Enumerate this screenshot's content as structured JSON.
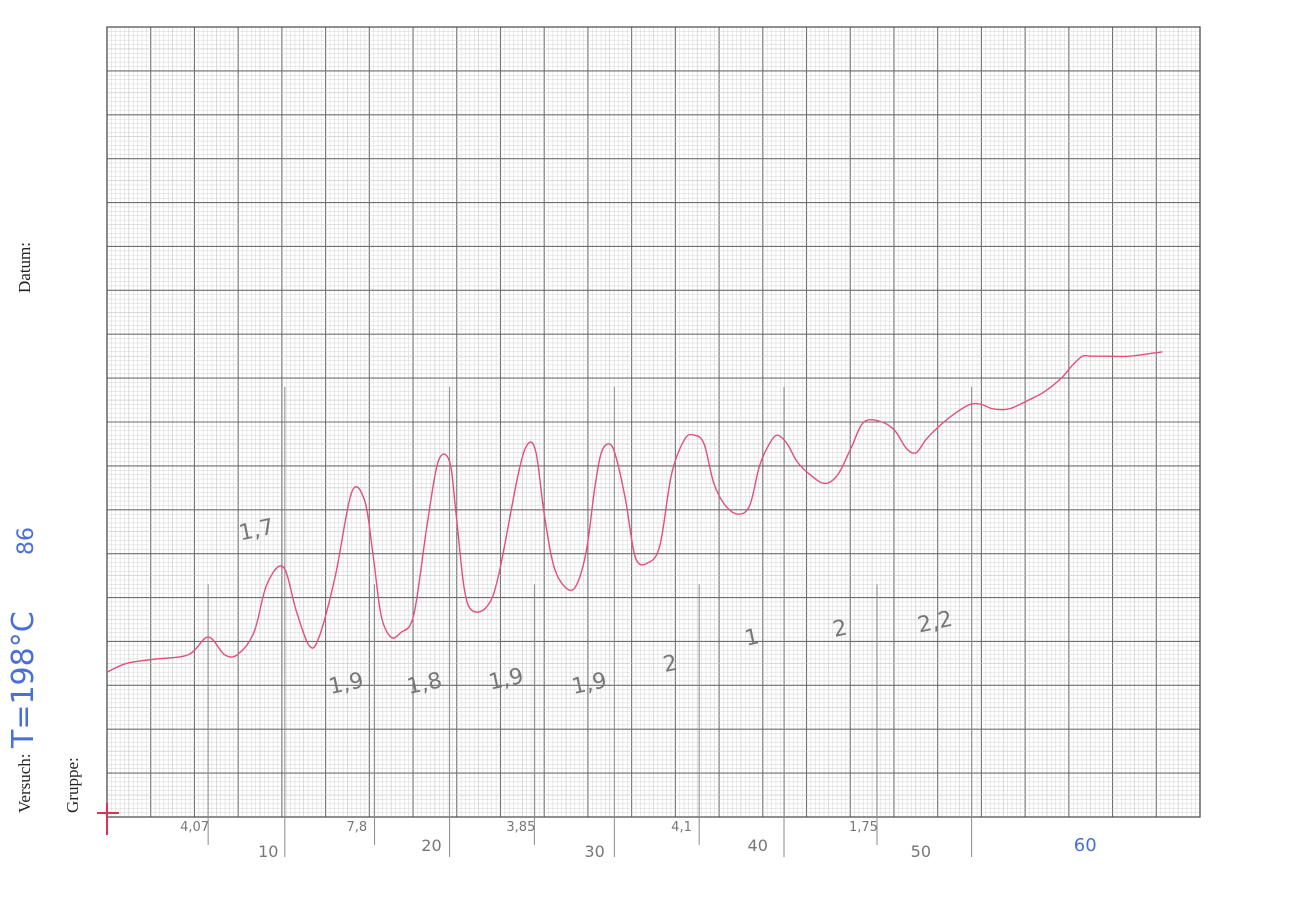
{
  "form": {
    "datum_label": "Datum:",
    "versuch_label": "Versuch:",
    "gruppe_label": "Gruppe:",
    "temperature_note": "T=198°C",
    "note_extra": "86"
  },
  "colors": {
    "curve": "#e0507a",
    "grid_major": "#6e6e6e",
    "grid_minor": "#c4c4c4",
    "pencil": "#8a8a8a",
    "blue_ink": "#4a6fd8",
    "origin_mark": "#e0305a"
  },
  "chart_data": {
    "type": "line",
    "title": "",
    "xlabel": "",
    "ylabel": "",
    "xlim": [
      0,
      67
    ],
    "ylim": [
      0,
      18
    ],
    "grid": true,
    "x_tick_labels": [
      {
        "x": 10,
        "label": "10"
      },
      {
        "x": 20,
        "label": "20"
      },
      {
        "x": 30,
        "label": "30"
      },
      {
        "x": 40,
        "label": "40"
      },
      {
        "x": 50,
        "label": "50"
      },
      {
        "x": 60,
        "label": "60"
      }
    ],
    "peak_markers": [
      {
        "x": 6.2,
        "label": "4,07"
      },
      {
        "x": 16.4,
        "label": "7,8"
      },
      {
        "x": 26.2,
        "label": "3,85"
      },
      {
        "x": 36.3,
        "label": "4,1"
      },
      {
        "x": 47.2,
        "label": "1,75"
      }
    ],
    "extra_markers": [
      10.9,
      21.0,
      31.1,
      41.5,
      53.0
    ],
    "spacing_labels": [
      {
        "x": 8.2,
        "y": 6.3,
        "label": "1,7"
      },
      {
        "x": 13.7,
        "y": 2.8,
        "label": "1,9"
      },
      {
        "x": 18.5,
        "y": 2.8,
        "label": "1,8"
      },
      {
        "x": 23.5,
        "y": 2.9,
        "label": "1,9"
      },
      {
        "x": 28.6,
        "y": 2.8,
        "label": "1,9"
      },
      {
        "x": 34.2,
        "y": 3.3,
        "label": "2"
      },
      {
        "x": 39.2,
        "y": 3.9,
        "label": "1"
      },
      {
        "x": 44.6,
        "y": 4.1,
        "label": "2"
      },
      {
        "x": 49.8,
        "y": 4.2,
        "label": "2,2"
      }
    ],
    "series": [
      {
        "x": [
          0,
          1.2,
          3,
          5,
          6.2,
          7.2,
          8,
          9,
          9.8,
          10.8,
          11.6,
          12.4,
          13,
          14,
          15,
          15.8,
          16.3,
          16.8,
          17.4,
          18,
          18.8,
          19.6,
          20.3,
          21,
          21.4,
          21.9,
          22.4,
          23.3,
          24,
          25.2,
          25.8,
          26.3,
          26.8,
          27.4,
          28.2,
          28.8,
          29.4,
          29.9,
          30.3,
          30.8,
          31.2,
          31.8,
          32.4,
          33.2,
          33.9,
          34.6,
          35.4,
          36,
          36.6,
          37.2,
          37.9,
          38.7,
          39.4,
          40,
          40.6,
          41.1,
          41.7,
          42.3,
          43.1,
          44,
          44.8,
          45.6,
          46.4,
          47.5,
          48.3,
          49,
          49.6,
          50.2,
          51,
          52,
          52.9,
          53.6,
          54.3,
          55.3,
          56.5,
          57.5,
          58.5,
          59.2,
          59.8,
          60.3,
          61.3,
          62.7,
          64.7
        ],
        "y": [
          3.3,
          3.5,
          3.6,
          3.7,
          4.1,
          3.7,
          3.7,
          4.2,
          5.3,
          5.7,
          4.7,
          3.9,
          4.1,
          5.5,
          7.4,
          7.2,
          6.0,
          4.6,
          4.1,
          4.2,
          4.6,
          6.6,
          8.1,
          8.1,
          6.9,
          5.2,
          4.7,
          4.8,
          5.5,
          7.8,
          8.5,
          8.3,
          6.9,
          5.7,
          5.2,
          5.3,
          6.1,
          7.5,
          8.3,
          8.5,
          8.2,
          7.2,
          5.9,
          5.8,
          6.2,
          7.8,
          8.6,
          8.7,
          8.5,
          7.6,
          7.1,
          6.9,
          7.1,
          8.0,
          8.5,
          8.7,
          8.5,
          8.1,
          7.8,
          7.6,
          7.8,
          8.4,
          9.0,
          9.0,
          8.8,
          8.4,
          8.3,
          8.6,
          8.9,
          9.2,
          9.4,
          9.4,
          9.3,
          9.3,
          9.5,
          9.7,
          10.0,
          10.3,
          10.5,
          10.5,
          10.5,
          10.5,
          10.6
        ]
      }
    ]
  }
}
